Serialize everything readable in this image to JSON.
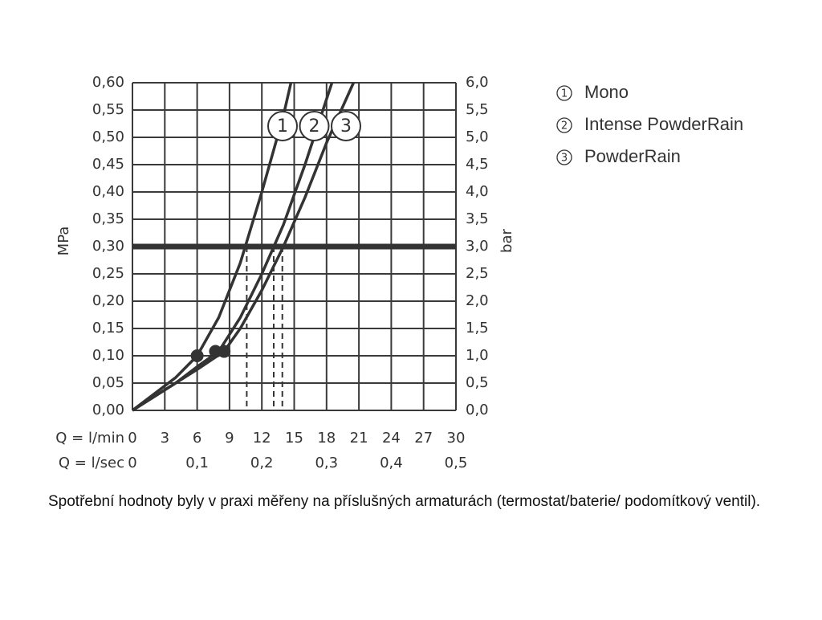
{
  "chart_data": {
    "type": "line",
    "ylabel": "MPa",
    "y2label": "bar",
    "xlabel": "Q = l/min",
    "x2label": "Q = l/sec",
    "xlim": [
      0,
      30
    ],
    "xticks": [
      0,
      3,
      6,
      9,
      12,
      15,
      18,
      21,
      24,
      27,
      30
    ],
    "x2lim": [
      0,
      0.5
    ],
    "x2ticks": [
      0,
      {
        "value": 0.1,
        "label": "0,1"
      },
      {
        "value": 0.2,
        "label": "0,2"
      },
      {
        "value": 0.3,
        "label": "0,3"
      },
      {
        "value": 0.4,
        "label": "0,4"
      },
      {
        "value": 0.5,
        "label": "0,5"
      }
    ],
    "ylim": [
      0,
      0.6
    ],
    "yticks": [
      {
        "value": 0,
        "label": "0,00"
      },
      {
        "value": 0.05,
        "label": "0,05"
      },
      {
        "value": 0.1,
        "label": "0,10"
      },
      {
        "value": 0.15,
        "label": "0,15"
      },
      {
        "value": 0.2,
        "label": "0,20"
      },
      {
        "value": 0.25,
        "label": "0,25"
      },
      {
        "value": 0.3,
        "label": "0,30"
      },
      {
        "value": 0.35,
        "label": "0,35"
      },
      {
        "value": 0.4,
        "label": "0,40"
      },
      {
        "value": 0.45,
        "label": "0,45"
      },
      {
        "value": 0.5,
        "label": "0,50"
      },
      {
        "value": 0.55,
        "label": "0,55"
      },
      {
        "value": 0.6,
        "label": "0,60"
      }
    ],
    "y2lim": [
      0,
      6
    ],
    "y2ticks": [
      {
        "value": 0,
        "label": "0,0"
      },
      {
        "value": 0.5,
        "label": "0,5"
      },
      {
        "value": 1,
        "label": "1,0"
      },
      {
        "value": 1.5,
        "label": "1,5"
      },
      {
        "value": 2,
        "label": "2,0"
      },
      {
        "value": 2.5,
        "label": "2,5"
      },
      {
        "value": 3,
        "label": "3,0"
      },
      {
        "value": 3.5,
        "label": "3,5"
      },
      {
        "value": 4,
        "label": "4,0"
      },
      {
        "value": 4.5,
        "label": "4,5"
      },
      {
        "value": 5,
        "label": "5,0"
      },
      {
        "value": 5.5,
        "label": "5,5"
      },
      {
        "value": 6,
        "label": "6,0"
      }
    ],
    "grid": true,
    "reference_y": 0.3,
    "color": "#333333",
    "series": [
      {
        "name": "Mono",
        "label": "1",
        "x": [
          0,
          2,
          4,
          6,
          8,
          10,
          12,
          14,
          14.7
        ],
        "values": [
          0,
          0.03,
          0.06,
          0.1,
          0.17,
          0.27,
          0.4,
          0.54,
          0.6
        ],
        "marker_x": 6,
        "marker_y": 0.1,
        "ref_x": 10.6
      },
      {
        "name": "Intense PowderRain",
        "label": "2",
        "x": [
          0,
          2,
          4,
          6,
          8,
          10,
          12,
          14,
          16,
          18,
          18.5
        ],
        "values": [
          0,
          0.025,
          0.05,
          0.08,
          0.108,
          0.17,
          0.25,
          0.34,
          0.45,
          0.57,
          0.6
        ],
        "marker_x": 7.7,
        "marker_y": 0.108,
        "ref_x": 13.1
      },
      {
        "name": "PowderRain",
        "label": "3",
        "x": [
          0,
          2,
          4,
          6,
          8.5,
          10,
          12,
          14,
          16,
          18,
          20.5
        ],
        "values": [
          0,
          0.025,
          0.05,
          0.075,
          0.108,
          0.15,
          0.22,
          0.3,
          0.39,
          0.49,
          0.6
        ],
        "marker_x": 8.5,
        "marker_y": 0.108,
        "ref_x": 13.9
      }
    ],
    "note": "Spotřební hodnoty byly v praxi měřeny na příslušných armaturách (termostat/baterie/ podomítkový ventil)."
  }
}
